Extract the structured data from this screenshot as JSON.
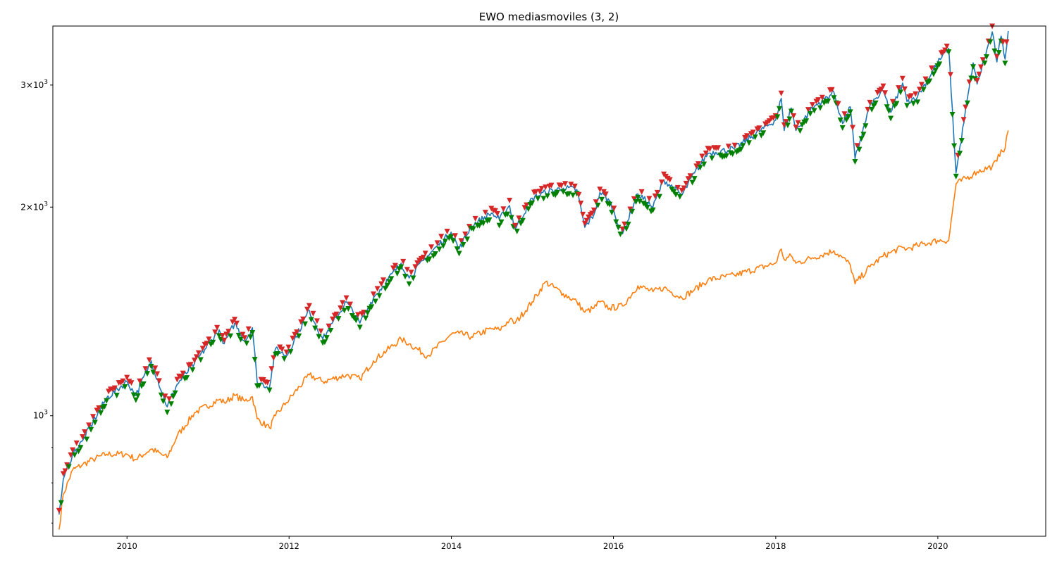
{
  "chart_data": {
    "type": "line",
    "title": "EWO mediasmoviles (3, 2)",
    "xlabel": "",
    "ylabel": "",
    "y_scale": "log",
    "xlim": [
      "2009-02-01",
      "2021-05-01"
    ],
    "ylim": [
      670,
      3650
    ],
    "x_ticks": [
      "2010",
      "2012",
      "2014",
      "2016",
      "2018",
      "2020"
    ],
    "y_ticks": [
      {
        "value": 1000,
        "label": "10^3"
      },
      {
        "value": 2000,
        "label": "2×10^3"
      },
      {
        "value": 3000,
        "label": "3×10^3"
      }
    ],
    "grid": false,
    "legend": "none",
    "series": [
      {
        "color": "#1f77b4",
        "points": [
          [
            "2009-03-01",
            720
          ],
          [
            "2009-03-20",
            810
          ],
          [
            "2009-05-01",
            880
          ],
          [
            "2009-06-15",
            920
          ],
          [
            "2009-08-01",
            980
          ],
          [
            "2009-10-01",
            1060
          ],
          [
            "2010-01-01",
            1120
          ],
          [
            "2010-02-10",
            1070
          ],
          [
            "2010-04-20",
            1200
          ],
          [
            "2010-07-01",
            1030
          ],
          [
            "2010-08-15",
            1110
          ],
          [
            "2010-11-01",
            1190
          ],
          [
            "2011-02-20",
            1330
          ],
          [
            "2011-03-15",
            1270
          ],
          [
            "2011-05-01",
            1360
          ],
          [
            "2011-06-15",
            1280
          ],
          [
            "2011-07-20",
            1340
          ],
          [
            "2011-08-10",
            1120
          ],
          [
            "2011-10-05",
            1100
          ],
          [
            "2011-11-01",
            1250
          ],
          [
            "2011-12-20",
            1220
          ],
          [
            "2012-04-01",
            1420
          ],
          [
            "2012-06-01",
            1290
          ],
          [
            "2012-09-15",
            1460
          ],
          [
            "2012-11-15",
            1360
          ],
          [
            "2013-01-15",
            1480
          ],
          [
            "2013-05-20",
            1660
          ],
          [
            "2013-06-25",
            1580
          ],
          [
            "2013-09-15",
            1700
          ],
          [
            "2013-12-31",
            1840
          ],
          [
            "2014-02-05",
            1740
          ],
          [
            "2014-04-01",
            1880
          ],
          [
            "2014-06-30",
            1960
          ],
          [
            "2014-08-05",
            1920
          ],
          [
            "2014-09-20",
            2010
          ],
          [
            "2014-10-15",
            1860
          ],
          [
            "2014-12-31",
            2060
          ],
          [
            "2015-03-01",
            2100
          ],
          [
            "2015-05-20",
            2130
          ],
          [
            "2015-07-20",
            2120
          ],
          [
            "2015-08-25",
            1870
          ],
          [
            "2015-10-05",
            1950
          ],
          [
            "2015-11-01",
            2100
          ],
          [
            "2015-12-15",
            2040
          ],
          [
            "2016-02-11",
            1830
          ],
          [
            "2016-04-20",
            2090
          ],
          [
            "2016-06-27",
            2000
          ],
          [
            "2016-08-15",
            2190
          ],
          [
            "2016-11-04",
            2080
          ],
          [
            "2016-12-31",
            2240
          ],
          [
            "2017-03-01",
            2390
          ],
          [
            "2017-06-30",
            2430
          ],
          [
            "2017-12-31",
            2670
          ],
          [
            "2018-01-26",
            2870
          ],
          [
            "2018-02-08",
            2580
          ],
          [
            "2018-03-12",
            2780
          ],
          [
            "2018-04-02",
            2580
          ],
          [
            "2018-06-15",
            2780
          ],
          [
            "2018-09-20",
            2930
          ],
          [
            "2018-10-29",
            2640
          ],
          [
            "2018-12-03",
            2790
          ],
          [
            "2018-12-24",
            2350
          ],
          [
            "2019-03-01",
            2800
          ],
          [
            "2019-04-30",
            2940
          ],
          [
            "2019-06-03",
            2740
          ],
          [
            "2019-07-26",
            3020
          ],
          [
            "2019-08-15",
            2840
          ],
          [
            "2019-10-02",
            2890
          ],
          [
            "2019-12-31",
            3230
          ],
          [
            "2020-02-19",
            3390
          ],
          [
            "2020-03-23",
            2240
          ],
          [
            "2020-06-08",
            3230
          ],
          [
            "2020-06-26",
            3010
          ],
          [
            "2020-09-02",
            3580
          ],
          [
            "2020-09-23",
            3240
          ],
          [
            "2020-10-12",
            3530
          ],
          [
            "2020-10-30",
            3270
          ],
          [
            "2020-11-13",
            3590
          ]
        ]
      },
      {
        "color": "#ff7f0e",
        "points": [
          [
            "2009-03-01",
            685
          ],
          [
            "2009-03-20",
            770
          ],
          [
            "2009-05-01",
            835
          ],
          [
            "2009-06-15",
            850
          ],
          [
            "2009-08-01",
            865
          ],
          [
            "2009-10-01",
            880
          ],
          [
            "2010-01-01",
            880
          ],
          [
            "2010-02-10",
            865
          ],
          [
            "2010-04-20",
            895
          ],
          [
            "2010-07-01",
            870
          ],
          [
            "2010-08-15",
            935
          ],
          [
            "2010-11-01",
            1010
          ],
          [
            "2011-02-20",
            1055
          ],
          [
            "2011-03-15",
            1045
          ],
          [
            "2011-05-01",
            1070
          ],
          [
            "2011-06-15",
            1050
          ],
          [
            "2011-07-20",
            1065
          ],
          [
            "2011-08-10",
            990
          ],
          [
            "2011-10-05",
            960
          ],
          [
            "2011-11-01",
            1000
          ],
          [
            "2011-12-20",
            1045
          ],
          [
            "2012-04-01",
            1145
          ],
          [
            "2012-06-01",
            1120
          ],
          [
            "2012-09-15",
            1145
          ],
          [
            "2012-11-15",
            1130
          ],
          [
            "2013-01-15",
            1200
          ],
          [
            "2013-05-20",
            1290
          ],
          [
            "2013-06-25",
            1270
          ],
          [
            "2013-09-15",
            1220
          ],
          [
            "2013-12-31",
            1310
          ],
          [
            "2014-02-05",
            1315
          ],
          [
            "2014-04-01",
            1300
          ],
          [
            "2014-06-30",
            1335
          ],
          [
            "2014-08-05",
            1330
          ],
          [
            "2014-09-20",
            1375
          ],
          [
            "2014-10-15",
            1360
          ],
          [
            "2014-12-31",
            1460
          ],
          [
            "2015-03-01",
            1560
          ],
          [
            "2015-05-20",
            1500
          ],
          [
            "2015-07-20",
            1460
          ],
          [
            "2015-08-25",
            1410
          ],
          [
            "2015-10-05",
            1430
          ],
          [
            "2015-11-01",
            1460
          ],
          [
            "2015-12-15",
            1430
          ],
          [
            "2016-02-11",
            1440
          ],
          [
            "2016-04-20",
            1540
          ],
          [
            "2016-06-27",
            1510
          ],
          [
            "2016-08-15",
            1530
          ],
          [
            "2016-11-04",
            1480
          ],
          [
            "2016-12-31",
            1520
          ],
          [
            "2017-03-01",
            1570
          ],
          [
            "2017-06-30",
            1595
          ],
          [
            "2017-12-31",
            1660
          ],
          [
            "2018-01-26",
            1740
          ],
          [
            "2018-02-08",
            1680
          ],
          [
            "2018-03-12",
            1700
          ],
          [
            "2018-04-02",
            1660
          ],
          [
            "2018-06-15",
            1690
          ],
          [
            "2018-09-20",
            1730
          ],
          [
            "2018-10-29",
            1690
          ],
          [
            "2018-12-03",
            1650
          ],
          [
            "2018-12-24",
            1550
          ],
          [
            "2019-03-01",
            1640
          ],
          [
            "2019-04-30",
            1700
          ],
          [
            "2019-06-03",
            1720
          ],
          [
            "2019-07-26",
            1750
          ],
          [
            "2019-08-15",
            1740
          ],
          [
            "2019-10-02",
            1760
          ],
          [
            "2019-12-31",
            1790
          ],
          [
            "2020-02-19",
            1790
          ],
          [
            "2020-03-23",
            2160
          ],
          [
            "2020-06-08",
            2230
          ],
          [
            "2020-06-26",
            2250
          ],
          [
            "2020-09-02",
            2290
          ],
          [
            "2020-09-23",
            2330
          ],
          [
            "2020-10-12",
            2420
          ],
          [
            "2020-10-30",
            2430
          ],
          [
            "2020-11-13",
            2580
          ]
        ]
      }
    ],
    "markers": {
      "red_down_triangle_color": "#d62728",
      "green_down_triangle_color": "#008000",
      "marker_shape": "down-triangle",
      "placement": "on first series"
    }
  }
}
